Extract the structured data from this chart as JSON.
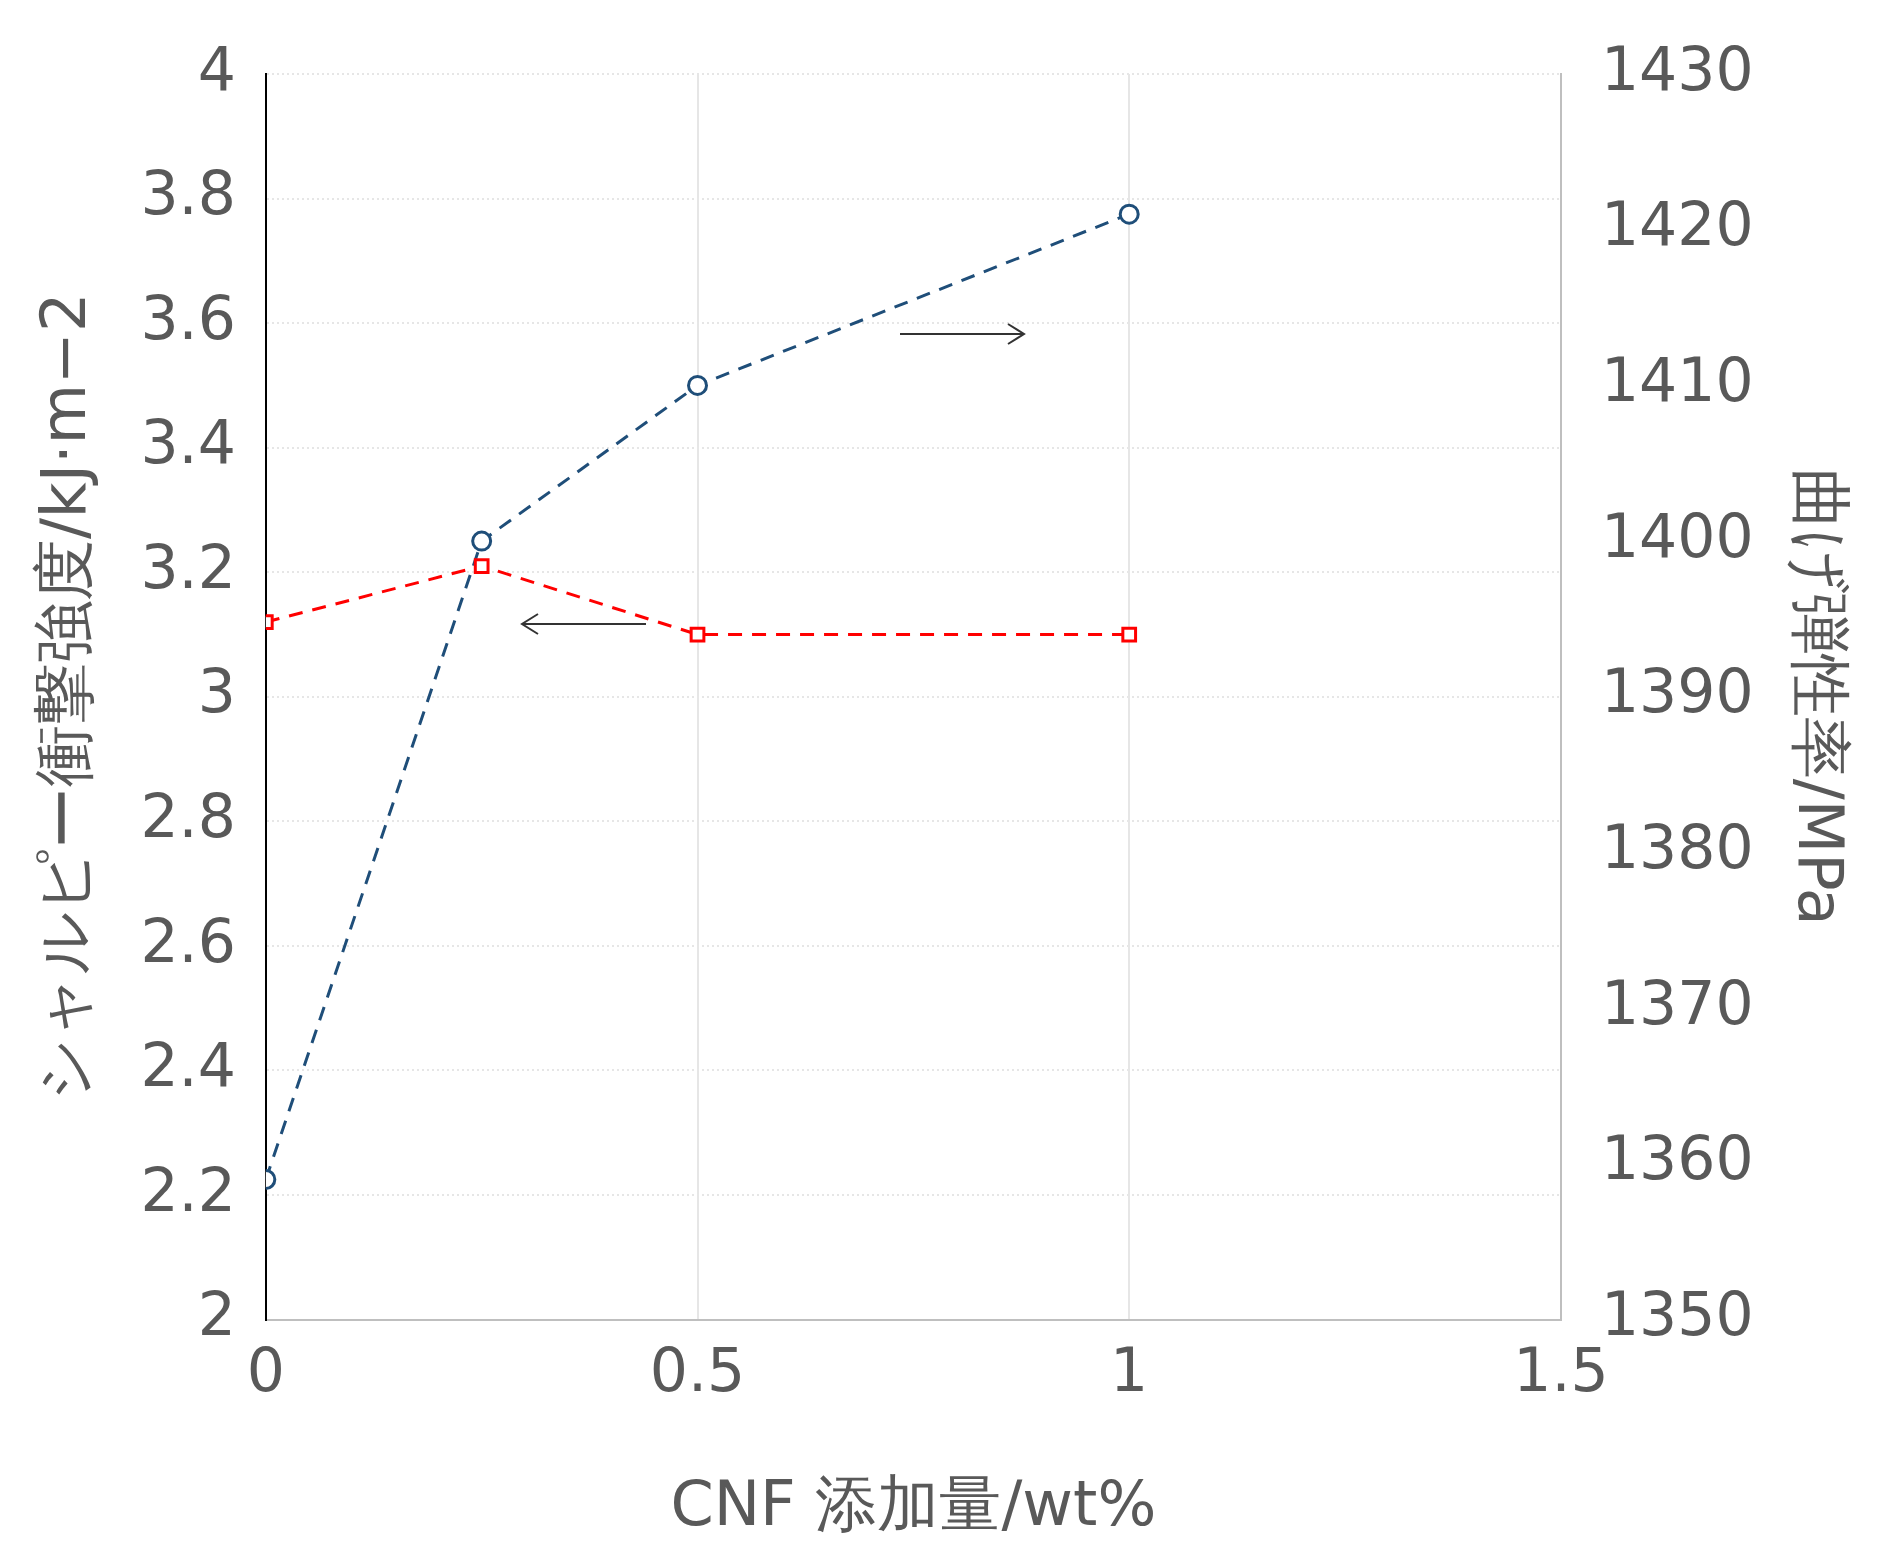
{
  "chart_data": {
    "type": "line",
    "xlabel": "CNF 添加量/wt%",
    "ylabel": "シャルピー衝撃強度/kJ·m−2",
    "y2label": "曲げ弾性率/MPa",
    "x": [
      0,
      0.25,
      0.5,
      1
    ],
    "series": [
      {
        "color": "#ff0000",
        "values": [
          3.12,
          3.21,
          3.1,
          3.1
        ],
        "marker": "square"
      },
      {
        "color": "#1f4e79",
        "values": [
          1359,
          1400,
          1410,
          1421
        ],
        "marker": "circle",
        "axis": "y2"
      }
    ],
    "xlim": [
      0,
      1.5
    ],
    "xticks": [
      0,
      0.5,
      1,
      1.5
    ],
    "ylim": [
      2,
      4
    ],
    "yticks": [
      2,
      2.2,
      2.4,
      2.6,
      2.8,
      3,
      3.2,
      3.4,
      3.6,
      3.8,
      4
    ],
    "y2lim": [
      1350,
      1430
    ],
    "y2ticks": [
      1350,
      1360,
      1370,
      1380,
      1390,
      1400,
      1410,
      1420,
      1430
    ],
    "grid": true,
    "line_style": "dashed"
  }
}
